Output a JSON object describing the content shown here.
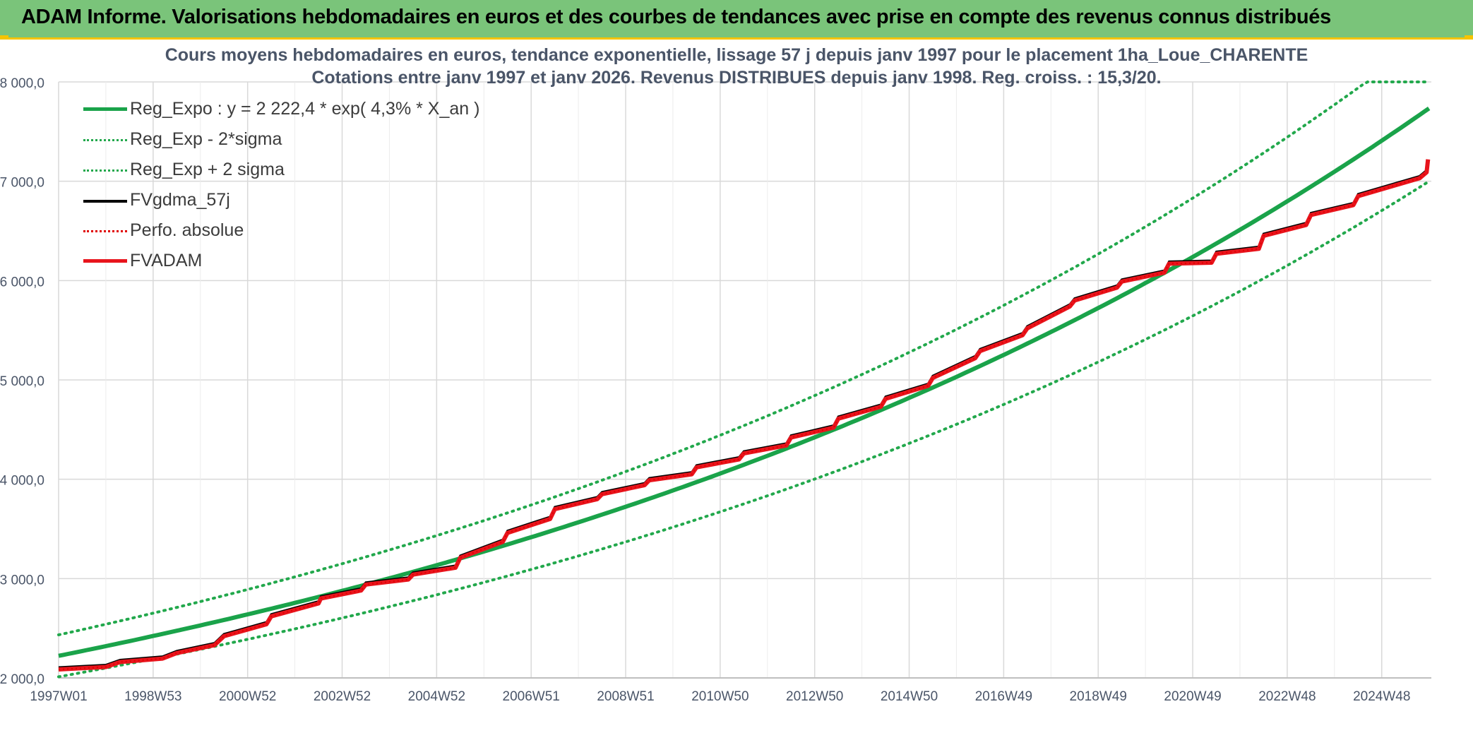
{
  "banner": {
    "title": "ADAM Informe. Valorisations hebdomadaires en euros et des courbes de tendances avec prise en compte des revenus connus distribués"
  },
  "colors": {
    "banner": "#7ac47a",
    "banner_accent": "#f5c400",
    "trend": "#1aa34a",
    "bands": "#22a84c",
    "fvgdma": "#000000",
    "perfo": "#e00000",
    "fvadam": "#e8141c",
    "grid": "#d9d9d9",
    "text": "#4a5568"
  },
  "chart_data": {
    "type": "line",
    "title": "Cours moyens hebdomadaires en euros, tendance exponentielle, lissage 57 j depuis janv 1997 pour le placement 1ha_Loue_CHARENTE",
    "subtitle": "Cotations entre janv 1997 et janv 2026. Revenus DISTRIBUES depuis janv 1998. Reg. croiss. : 15,3/20.",
    "x_ticks": [
      "1997W01",
      "1998W53",
      "2000W52",
      "2002W52",
      "2004W52",
      "2006W51",
      "2008W51",
      "2010W50",
      "2012W50",
      "2014W50",
      "2016W49",
      "2018W49",
      "2020W49",
      "2022W48",
      "2024W48"
    ],
    "x_range": [
      "1997W01",
      "2026W03"
    ],
    "y_ticks": [
      "2 000,0",
      "3 000,0",
      "4 000,0",
      "5 000,0",
      "6 000,0",
      "7 000,0",
      "8 000,0"
    ],
    "ylim": [
      2000,
      8000
    ],
    "grid": true,
    "legend_position": "top-left",
    "legend": [
      {
        "label": "Reg_Expo : y = 2 222,4 * exp( 4,3% *  X_an )",
        "style": "solid-thick",
        "color": "#1aa34a"
      },
      {
        "label": "Reg_Exp - 2*sigma",
        "style": "dotted",
        "color": "#22a84c"
      },
      {
        "label": "Reg_Exp + 2 sigma",
        "style": "dotted",
        "color": "#22a84c"
      },
      {
        "label": "FVgdma_57j",
        "style": "solid",
        "color": "#000000"
      },
      {
        "label": "Perfo. absolue",
        "style": "dotted",
        "color": "#e00000"
      },
      {
        "label": "FVADAM",
        "style": "solid-thick",
        "color": "#e8141c"
      }
    ],
    "regression": {
      "a": 2222.4,
      "rate": 0.043,
      "upper_factor": 1.095,
      "lower_factor": 0.905
    },
    "series_fvadam": {
      "x_years": [
        1997.0,
        1998.0,
        1998.3,
        1999.2,
        1999.5,
        2000.3,
        2000.5,
        2001.4,
        2001.5,
        2002.5,
        2002.55,
        2003.4,
        2003.5,
        2004.4,
        2004.5,
        2005.4,
        2005.5,
        2006.4,
        2006.5,
        2007.4,
        2007.5,
        2008.4,
        2008.5,
        2009.4,
        2009.5,
        2010.4,
        2010.5,
        2011.4,
        2011.5,
        2012.4,
        2012.5,
        2013.4,
        2013.5,
        2014.4,
        2014.5,
        2015.4,
        2015.5,
        2016.4,
        2016.5,
        2017.4,
        2017.5,
        2018.4,
        2018.5,
        2019.4,
        2019.5,
        2020.4,
        2020.5,
        2021.4,
        2021.5,
        2022.4,
        2022.5,
        2023.4,
        2023.5,
        2024.4,
        2024.5,
        2025.8,
        2025.95
      ],
      "y": [
        2085,
        2110,
        2160,
        2195,
        2250,
        2330,
        2420,
        2540,
        2620,
        2750,
        2800,
        2880,
        2940,
        2990,
        3040,
        3110,
        3210,
        3370,
        3460,
        3600,
        3700,
        3800,
        3850,
        3940,
        3990,
        4050,
        4120,
        4200,
        4260,
        4340,
        4420,
        4520,
        4610,
        4730,
        4810,
        4940,
        5020,
        5220,
        5290,
        5450,
        5520,
        5740,
        5800,
        5930,
        5990,
        6080,
        6170,
        6180,
        6270,
        6320,
        6450,
        6560,
        6660,
        6760,
        6850,
        7030,
        7090
      ]
    },
    "end_point": {
      "x_year": 2025.98,
      "y": 7220
    }
  }
}
